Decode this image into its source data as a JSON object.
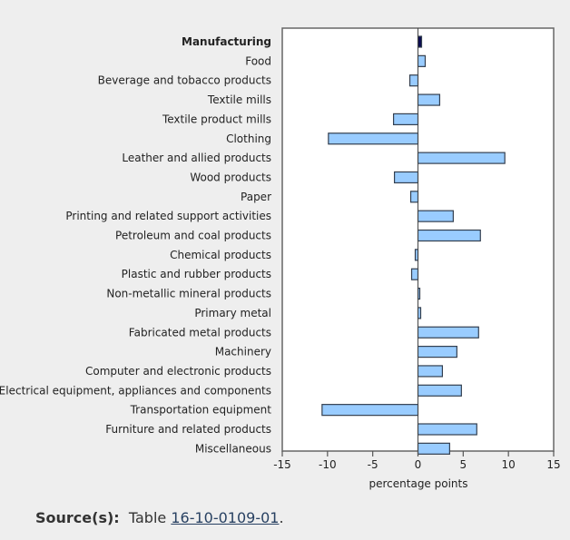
{
  "chart_data": {
    "type": "bar",
    "orientation": "horizontal",
    "categories": [
      "Manufacturing",
      "Food",
      "Beverage and tobacco products",
      "Textile mills",
      "Textile product mills",
      "Clothing",
      "Leather and allied products",
      "Wood products",
      "Paper",
      "Printing and related support activities",
      "Petroleum and coal products",
      "Chemical products",
      "Plastic and rubber products",
      "Non-metallic mineral products",
      "Primary metal",
      "Fabricated metal products",
      "Machinery",
      "Computer and electronic products",
      "Electrical equipment, appliances and components",
      "Transportation equipment",
      "Furniture and related products",
      "Miscellaneous"
    ],
    "values": [
      0.4,
      0.8,
      -0.9,
      2.4,
      -2.7,
      -9.9,
      9.6,
      -2.6,
      -0.8,
      3.9,
      6.9,
      -0.3,
      -0.7,
      0.2,
      0.3,
      6.7,
      4.3,
      2.7,
      4.8,
      -10.6,
      6.5,
      3.5
    ],
    "bold_categories": [
      "Manufacturing"
    ],
    "xlabel": "percentage points",
    "xlim": [
      -15,
      15
    ],
    "xticks": [
      "-15",
      "-10",
      "-5",
      "0",
      "5",
      "10",
      "15"
    ],
    "grid": false,
    "colors": {
      "bar": "#99ccff",
      "highlight": "#0a0a50",
      "bar_border": "#333f4f",
      "axis": "#555555"
    }
  },
  "source": {
    "label": "Source(s):",
    "text": "Table",
    "link": "16-10-0109-01",
    "suffix": "."
  }
}
